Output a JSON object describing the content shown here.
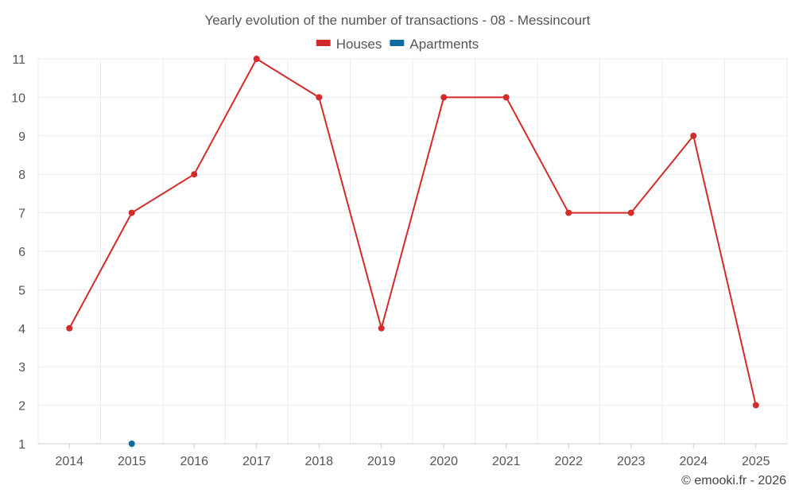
{
  "chart_data": {
    "type": "line",
    "title": "Yearly evolution of the number of transactions - 08 - Messincourt",
    "categories": [
      "2014",
      "2015",
      "2016",
      "2017",
      "2018",
      "2019",
      "2020",
      "2021",
      "2022",
      "2023",
      "2024",
      "2025"
    ],
    "series": [
      {
        "name": "Houses",
        "color": "#d42a2a",
        "values": [
          4,
          7,
          8,
          11,
          10,
          4,
          10,
          10,
          7,
          7,
          9,
          2
        ]
      },
      {
        "name": "Apartments",
        "color": "#0d6b9e",
        "values": [
          null,
          1,
          null,
          null,
          null,
          null,
          null,
          null,
          null,
          null,
          null,
          null
        ]
      }
    ],
    "ylim": [
      1,
      11
    ],
    "yticks": [
      1,
      2,
      3,
      4,
      5,
      6,
      7,
      8,
      9,
      10,
      11
    ],
    "xlabel": "",
    "ylabel": "",
    "grid": true,
    "legend": "top-center"
  },
  "credit": "© emooki.fr - 2026"
}
